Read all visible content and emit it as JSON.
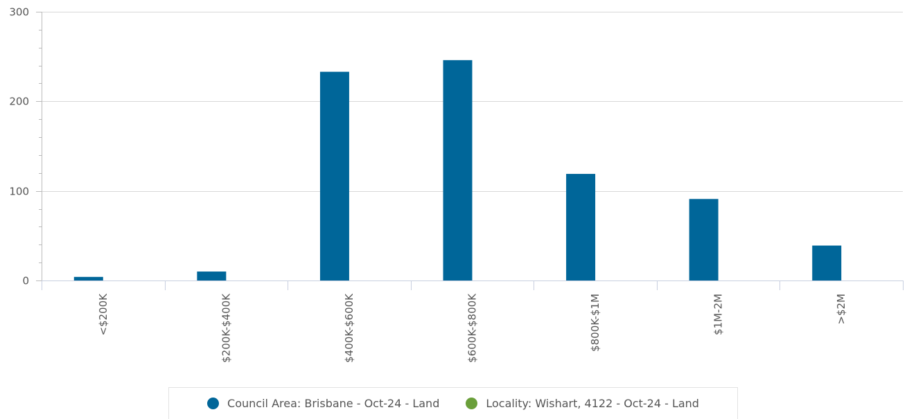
{
  "chart_data": {
    "type": "bar",
    "categories": [
      "<$200K",
      "$200K-$400K",
      "$400K-$600K",
      "$600K-$800K",
      "$800K-$1M",
      "$1M-2M",
      ">$2M"
    ],
    "series": [
      {
        "name": "Council Area: Brisbane - Oct-24 - Land",
        "color": "#006699",
        "values": [
          4,
          10,
          233,
          246,
          119,
          91,
          39
        ]
      },
      {
        "name": "Locality: Wishart, 4122 - Oct-24 - Land",
        "color": "#6a9f3a",
        "values": [
          0,
          0,
          0,
          0,
          0,
          0,
          0
        ]
      }
    ],
    "ylim": [
      0,
      300
    ],
    "yticks": [
      "0",
      "100",
      "200",
      "300"
    ],
    "title": "",
    "xlabel": "",
    "ylabel": "",
    "grid": true,
    "legend_position": "bottom-center"
  }
}
